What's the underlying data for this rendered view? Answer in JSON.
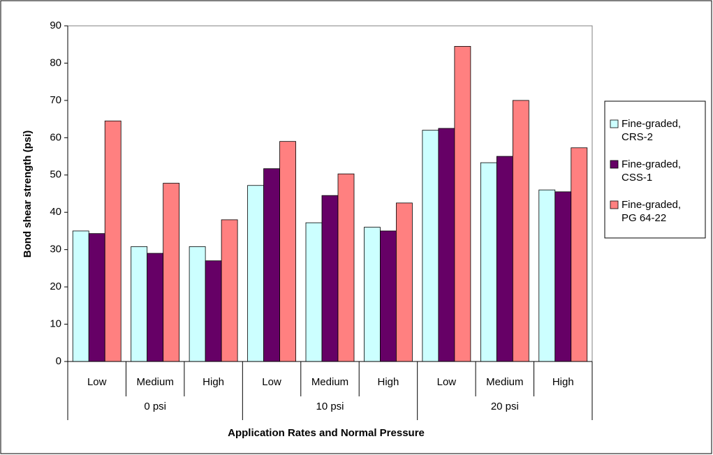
{
  "chart_data": {
    "type": "bar",
    "x_label": "Application Rates and Normal Pressure",
    "y_label": "Bond shear strength (psi)",
    "categories": [
      "Low",
      "Medium",
      "High",
      "Low",
      "Medium",
      "High",
      "Low",
      "Medium",
      "High"
    ],
    "groups": [
      "0 psi",
      "10 psi",
      "20 psi"
    ],
    "series": [
      {
        "name": "Fine-graded, CRS-2",
        "color": "#ccffff",
        "values": [
          35,
          30.8,
          30.8,
          47.2,
          37.2,
          36,
          62,
          53.3,
          46
        ]
      },
      {
        "name": "Fine-graded, CSS-1",
        "color": "#660066",
        "values": [
          34.3,
          29,
          27,
          51.7,
          44.5,
          35,
          62.5,
          55,
          45.5
        ]
      },
      {
        "name": "Fine-graded, PG 64-22",
        "color": "#ff8080",
        "values": [
          64.5,
          47.8,
          38,
          59,
          50.3,
          42.5,
          84.5,
          70,
          57.3
        ]
      }
    ],
    "ylim": [
      0,
      90
    ],
    "yticks": [
      0,
      10,
      20,
      30,
      40,
      50,
      60,
      70,
      80,
      90
    ],
    "legend": "right"
  }
}
